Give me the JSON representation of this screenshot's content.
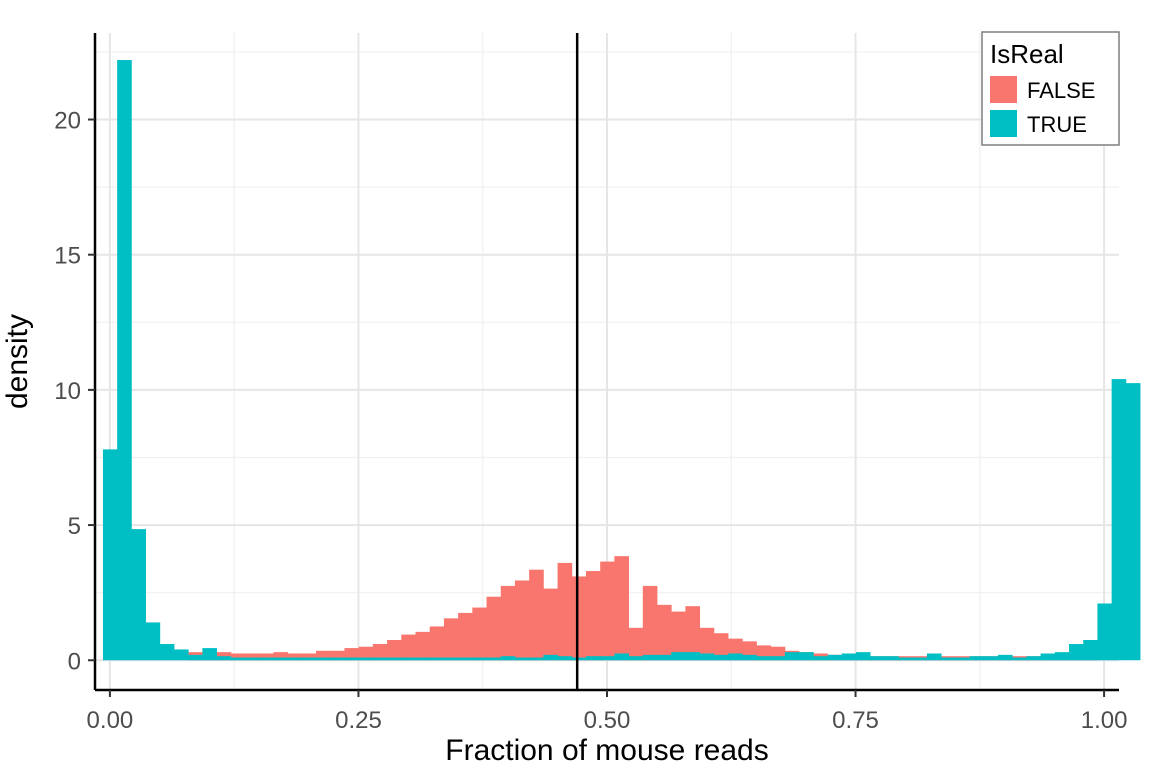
{
  "chart_data": {
    "type": "bar",
    "subtype": "overlapping-histogram",
    "title": "",
    "xlabel": "Fraction of mouse reads",
    "ylabel": "density",
    "xlim": [
      -0.015,
      1.015
    ],
    "ylim": [
      -1.1,
      23.2
    ],
    "x_ticks": [
      0,
      0.25,
      0.5,
      0.75,
      1.0
    ],
    "x_tick_labels": [
      "0.00",
      "0.25",
      "0.50",
      "0.75",
      "1.00"
    ],
    "y_ticks": [
      0,
      5,
      10,
      15,
      20
    ],
    "y_tick_labels": [
      "0",
      "5",
      "10",
      "15",
      "20"
    ],
    "grid": true,
    "bin_width": 0.01429,
    "bin_start": -0.007,
    "vline_x": 0.47,
    "legend": {
      "title": "IsReal",
      "position": "top-right"
    },
    "series": [
      {
        "name": "FALSE",
        "color": "#F8766D",
        "values": [
          0,
          0,
          0,
          0,
          0,
          0,
          0.3,
          0.35,
          0.3,
          0.25,
          0.25,
          0.25,
          0.3,
          0.25,
          0.25,
          0.35,
          0.35,
          0.45,
          0.5,
          0.6,
          0.75,
          0.95,
          1.05,
          1.25,
          1.55,
          1.75,
          1.95,
          2.35,
          2.75,
          2.95,
          3.35,
          2.65,
          3.6,
          3.1,
          3.3,
          3.65,
          3.85,
          1.2,
          2.75,
          2.05,
          1.8,
          2.0,
          1.2,
          1.0,
          0.8,
          0.7,
          0.55,
          0.5,
          0.35,
          0.3,
          0.25,
          0.2,
          0.2,
          0.15,
          0.15,
          0.15,
          0.15,
          0.15,
          0.15,
          0.15,
          0.15,
          0.15,
          0.15,
          0.15,
          0.15,
          0.15,
          0.1,
          0.1,
          0.05,
          0.05,
          0,
          0
        ]
      },
      {
        "name": "TRUE",
        "color": "#00BFC4",
        "values": [
          7.8,
          22.2,
          4.85,
          1.4,
          0.6,
          0.4,
          0.2,
          0.45,
          0.15,
          0.1,
          0.1,
          0.1,
          0.1,
          0.1,
          0.1,
          0.1,
          0.1,
          0.1,
          0.1,
          0.1,
          0.1,
          0.1,
          0.1,
          0.1,
          0.1,
          0.1,
          0.1,
          0.1,
          0.15,
          0.1,
          0.1,
          0.2,
          0.15,
          0.1,
          0.15,
          0.15,
          0.25,
          0.15,
          0.2,
          0.2,
          0.3,
          0.3,
          0.25,
          0.2,
          0.25,
          0.2,
          0.15,
          0.15,
          0.3,
          0.3,
          0.15,
          0.2,
          0.25,
          0.3,
          0.15,
          0.15,
          0.1,
          0.1,
          0.25,
          0.1,
          0.1,
          0.15,
          0.15,
          0.2,
          0.1,
          0.15,
          0.25,
          0.3,
          0.6,
          0.75,
          2.1,
          10.4,
          10.25
        ]
      }
    ]
  }
}
